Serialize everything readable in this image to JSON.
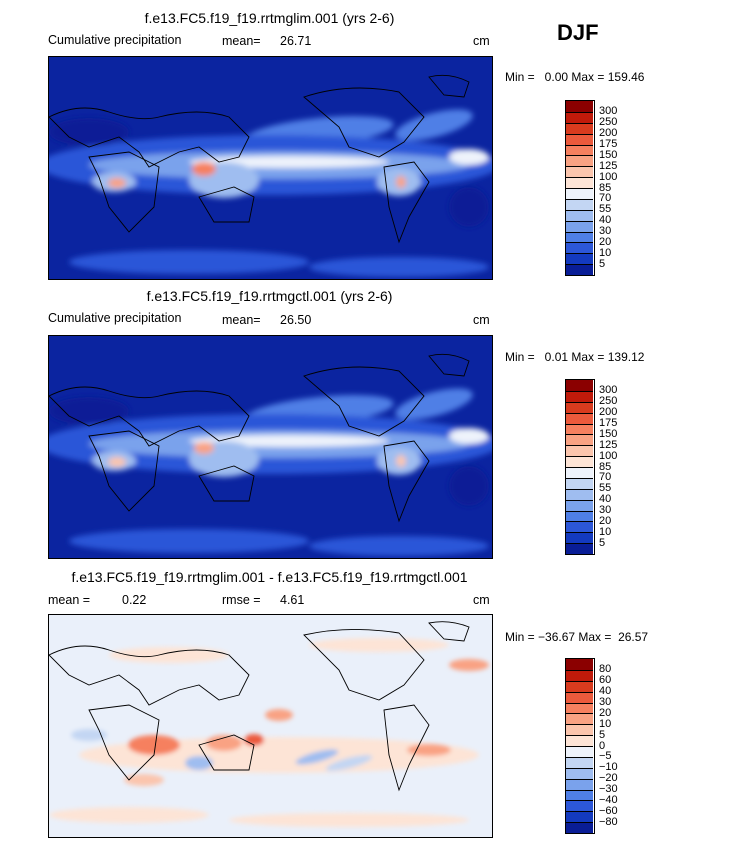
{
  "season": "DJF",
  "panels": [
    {
      "title": "f.e13.FC5.f19_f19.rrtmglim.001 (yrs 2-6)",
      "left_label": "Cumulative precipitation",
      "stat_label": "mean=",
      "stat_value": "26.71",
      "units": "cm",
      "minmax": "Min =   0.00 Max = 159.46",
      "colorbar": {
        "labels": [
          "300",
          "250",
          "200",
          "175",
          "150",
          "125",
          "100",
          "85",
          "70",
          "55",
          "40",
          "30",
          "20",
          "10",
          "5"
        ],
        "colors": [
          "#8b0000",
          "#c01a0a",
          "#d93b1e",
          "#ec5a3c",
          "#f6805f",
          "#f9a283",
          "#fbc5ad",
          "#fde4d6",
          "#eef3fb",
          "#c3d6f3",
          "#9fbdf0",
          "#7aa2ec",
          "#4f7fe6",
          "#2c57d8",
          "#133abf",
          "#091d96"
        ]
      }
    },
    {
      "title": "f.e13.FC5.f19_f19.rrtmgctl.001 (yrs 2-6)",
      "left_label": "Cumulative precipitation",
      "stat_label": "mean=",
      "stat_value": "26.50",
      "units": "cm",
      "minmax": "Min =   0.01 Max = 139.12",
      "colorbar": {
        "labels": [
          "300",
          "250",
          "200",
          "175",
          "150",
          "125",
          "100",
          "85",
          "70",
          "55",
          "40",
          "30",
          "20",
          "10",
          "5"
        ],
        "colors": [
          "#8b0000",
          "#c01a0a",
          "#d93b1e",
          "#ec5a3c",
          "#f6805f",
          "#f9a283",
          "#fbc5ad",
          "#fde4d6",
          "#eef3fb",
          "#c3d6f3",
          "#9fbdf0",
          "#7aa2ec",
          "#4f7fe6",
          "#2c57d8",
          "#133abf",
          "#091d96"
        ]
      }
    },
    {
      "title": "f.e13.FC5.f19_f19.rrtmglim.001 - f.e13.FC5.f19_f19.rrtmgctl.001",
      "left_label": "mean =",
      "left_value": "0.22",
      "stat_label": "rmse =",
      "stat_value": "4.61",
      "units": "cm",
      "minmax": "Min = −36.67 Max =  26.57",
      "colorbar": {
        "labels": [
          "80",
          "60",
          "40",
          "30",
          "20",
          "10",
          "5",
          "0",
          "−5",
          "−10",
          "−20",
          "−30",
          "−40",
          "−60",
          "−80"
        ],
        "colors": [
          "#8b0000",
          "#c01a0a",
          "#d93b1e",
          "#ec5a3c",
          "#f6805f",
          "#f9a283",
          "#fbc5ad",
          "#fde4d6",
          "#eef3fb",
          "#c3d6f3",
          "#9fbdf0",
          "#7aa2ec",
          "#4f7fe6",
          "#2c57d8",
          "#133abf",
          "#091d96"
        ]
      }
    }
  ],
  "chart_data": [
    {
      "type": "heatmap",
      "title": "f.e13.FC5.f19_f19.rrtmglim.001 (yrs 2-6)",
      "variable": "Cumulative precipitation",
      "units": "cm",
      "mean": 26.71,
      "min": 0.0,
      "max": 159.46,
      "levels": [
        5,
        10,
        20,
        30,
        40,
        55,
        70,
        85,
        100,
        125,
        150,
        175,
        200,
        250,
        300
      ]
    },
    {
      "type": "heatmap",
      "title": "f.e13.FC5.f19_f19.rrtmgctl.001 (yrs 2-6)",
      "variable": "Cumulative precipitation",
      "units": "cm",
      "mean": 26.5,
      "min": 0.01,
      "max": 139.12,
      "levels": [
        5,
        10,
        20,
        30,
        40,
        55,
        70,
        85,
        100,
        125,
        150,
        175,
        200,
        250,
        300
      ]
    },
    {
      "type": "heatmap",
      "title": "f.e13.FC5.f19_f19.rrtmglim.001 - f.e13.FC5.f19_f19.rrtmgctl.001",
      "units": "cm",
      "mean": 0.22,
      "rmse": 4.61,
      "min": -36.67,
      "max": 26.57,
      "levels": [
        -80,
        -60,
        -40,
        -30,
        -20,
        -10,
        -5,
        0,
        5,
        10,
        20,
        30,
        40,
        60,
        80
      ]
    }
  ]
}
